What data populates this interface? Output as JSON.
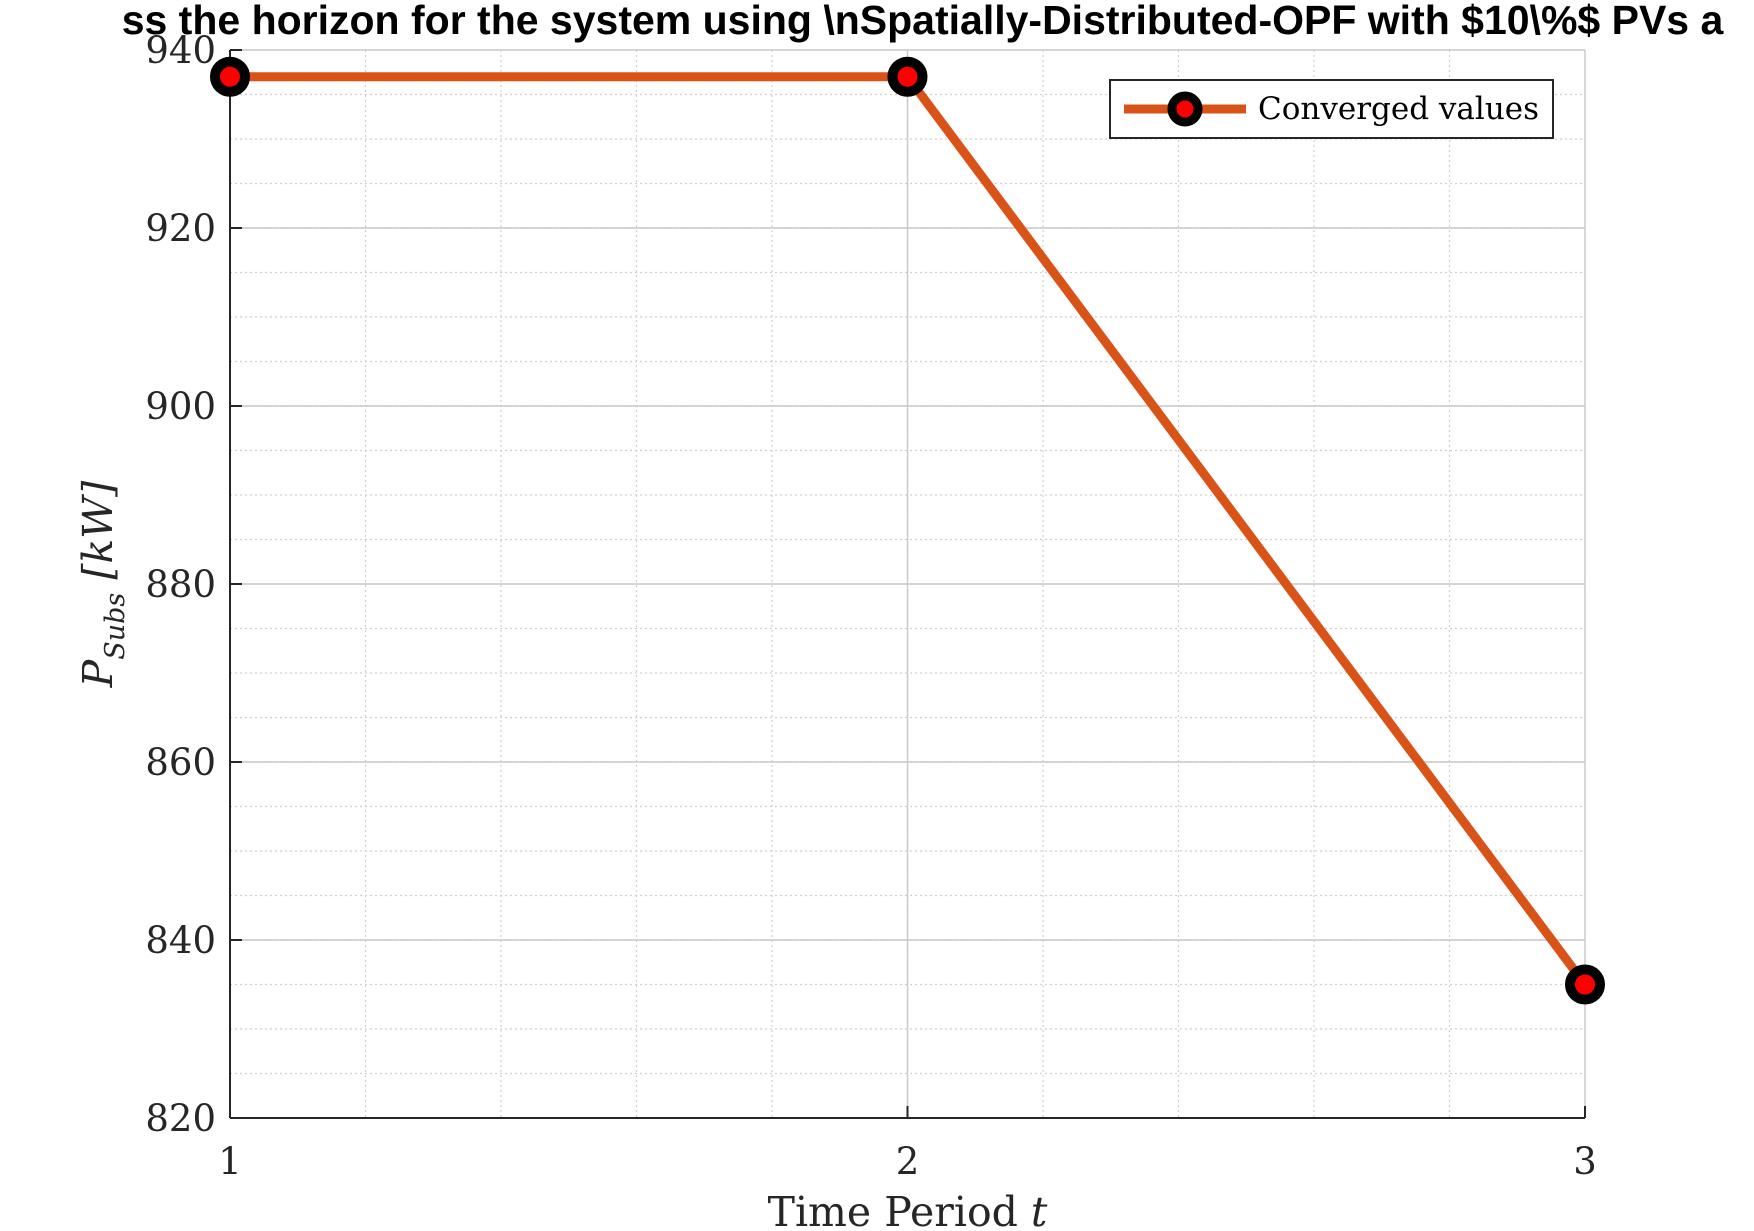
{
  "chart_data": {
    "type": "line",
    "title": "ss the horizon for the system using \\nSpatially-Distributed-OPF with $10\\%$ PVs a",
    "xlabel": "Time Period t",
    "ylabel": "P_Subs [kW]",
    "ylabel_parts": {
      "main": "P",
      "sub": "Subs",
      "unit": "[kW]"
    },
    "xlabel_parts": {
      "text": "Time Period ",
      "var": "t"
    },
    "x": [
      1,
      2,
      3
    ],
    "xticks": [
      "1",
      "2",
      "3"
    ],
    "xlim": [
      1,
      3
    ],
    "yticks": [
      "820",
      "840",
      "860",
      "880",
      "900",
      "920",
      "940"
    ],
    "ylim": [
      820,
      940
    ],
    "series": [
      {
        "name": "Converged values",
        "values": [
          937,
          937,
          835
        ]
      }
    ],
    "grid": true,
    "minor_grid": true,
    "legend_position": "top-right",
    "colors": {
      "line": "#D95319",
      "marker_edge": "#000000",
      "marker_face": "#FF0000",
      "grid": "#d0d0d0",
      "axis": "#262626"
    }
  }
}
